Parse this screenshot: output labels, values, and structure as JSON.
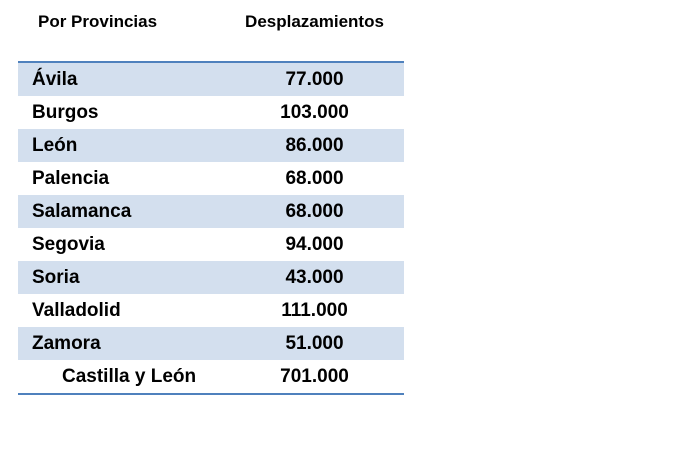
{
  "table": {
    "header": {
      "col1": "Por Provincias",
      "col2": "Desplazamientos"
    },
    "rows": [
      {
        "province": "Ávila",
        "value": "77.000"
      },
      {
        "province": "Burgos",
        "value": "103.000"
      },
      {
        "province": "León",
        "value": "86.000"
      },
      {
        "province": "Palencia",
        "value": "68.000"
      },
      {
        "province": "Salamanca",
        "value": "68.000"
      },
      {
        "province": "Segovia",
        "value": "94.000"
      },
      {
        "province": "Soria",
        "value": "43.000"
      },
      {
        "province": "Valladolid",
        "value": "111.000"
      },
      {
        "province": "Zamora",
        "value": "51.000"
      }
    ],
    "total_row": {
      "province": "Castilla y León",
      "value": "701.000"
    },
    "colors": {
      "border": "#4F81BD",
      "row_shade": "#D3DFEE",
      "text": "#000000",
      "background": "#ffffff"
    }
  },
  "chart_data": {
    "type": "table",
    "title": "",
    "columns": [
      "Por Provincias",
      "Desplazamientos"
    ],
    "categories": [
      "Ávila",
      "Burgos",
      "León",
      "Palencia",
      "Salamanca",
      "Segovia",
      "Soria",
      "Valladolid",
      "Zamora",
      "Castilla y León"
    ],
    "values": [
      77000,
      103000,
      86000,
      68000,
      68000,
      94000,
      43000,
      111000,
      51000,
      701000
    ],
    "value_labels": [
      "77.000",
      "103.000",
      "86.000",
      "68.000",
      "68.000",
      "94.000",
      "43.000",
      "111.000",
      "51.000",
      "701.000"
    ],
    "total_row": "Castilla y León",
    "layout_hints": {
      "striped_rows": true,
      "stripe_color": "#D3DFEE",
      "top_bottom_border_color": "#4F81BD",
      "value_alignment": "center",
      "total_row_indented": true
    }
  }
}
